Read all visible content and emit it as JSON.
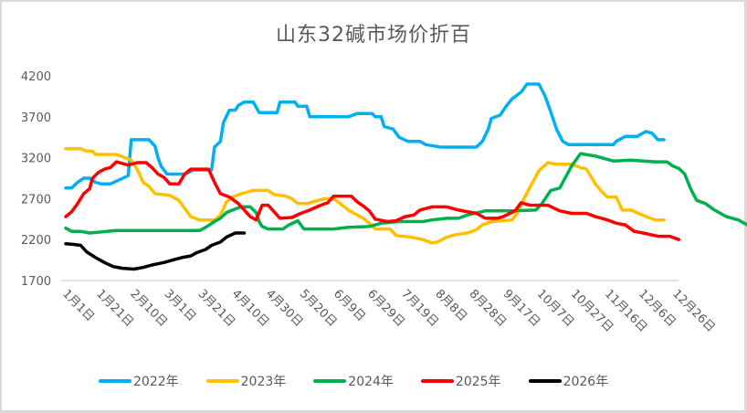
{
  "chart_data": {
    "type": "line",
    "title": "山东32碱市场价折百",
    "xlabel": "",
    "ylabel": "",
    "ylim": [
      1700,
      4200
    ],
    "yticks": [
      1700,
      2200,
      2700,
      3200,
      3700,
      4200
    ],
    "grid": false,
    "legend_position": "bottom",
    "x_tick_labels": [
      "1月1日",
      "1月21日",
      "2月10日",
      "3月1日",
      "3月21日",
      "4月10日",
      "4月30日",
      "5月20日",
      "6月9日",
      "6月29日",
      "7月19日",
      "8月8日",
      "8月28日",
      "9月17日",
      "10月7日",
      "10月27日",
      "11月16日",
      "12月6日",
      "12月26日"
    ],
    "x_unit": "day_of_year",
    "series": [
      {
        "name": "2022年",
        "color": "#00B0F0",
        "points": [
          [
            0,
            2830
          ],
          [
            4,
            2830
          ],
          [
            8,
            2900
          ],
          [
            12,
            2950
          ],
          [
            16,
            2950
          ],
          [
            20,
            2900
          ],
          [
            24,
            2880
          ],
          [
            30,
            2880
          ],
          [
            36,
            2930
          ],
          [
            42,
            2980
          ],
          [
            44,
            3420
          ],
          [
            56,
            3420
          ],
          [
            60,
            3340
          ],
          [
            62,
            3200
          ],
          [
            64,
            3100
          ],
          [
            68,
            3000
          ],
          [
            72,
            3000
          ],
          [
            80,
            3000
          ],
          [
            86,
            3050
          ],
          [
            94,
            3050
          ],
          [
            98,
            3050
          ],
          [
            100,
            3330
          ],
          [
            104,
            3400
          ],
          [
            106,
            3630
          ],
          [
            110,
            3780
          ],
          [
            114,
            3780
          ],
          [
            116,
            3840
          ],
          [
            120,
            3880
          ],
          [
            126,
            3880
          ],
          [
            130,
            3750
          ],
          [
            142,
            3750
          ],
          [
            144,
            3880
          ],
          [
            154,
            3880
          ],
          [
            156,
            3830
          ],
          [
            162,
            3830
          ],
          [
            164,
            3700
          ],
          [
            190,
            3700
          ],
          [
            196,
            3740
          ],
          [
            206,
            3740
          ],
          [
            208,
            3700
          ],
          [
            212,
            3700
          ],
          [
            214,
            3580
          ],
          [
            220,
            3550
          ],
          [
            224,
            3450
          ],
          [
            230,
            3400
          ],
          [
            238,
            3400
          ],
          [
            242,
            3360
          ],
          [
            252,
            3330
          ],
          [
            270,
            3330
          ],
          [
            276,
            3330
          ],
          [
            280,
            3400
          ],
          [
            284,
            3550
          ],
          [
            286,
            3680
          ],
          [
            292,
            3720
          ],
          [
            296,
            3830
          ],
          [
            300,
            3920
          ],
          [
            306,
            4000
          ],
          [
            310,
            4100
          ],
          [
            318,
            4100
          ],
          [
            322,
            3960
          ],
          [
            326,
            3760
          ],
          [
            330,
            3540
          ],
          [
            334,
            3400
          ],
          [
            338,
            3360
          ],
          [
            348,
            3360
          ],
          [
            360,
            3360
          ],
          [
            368,
            3360
          ],
          [
            370,
            3400
          ],
          [
            376,
            3460
          ],
          [
            384,
            3460
          ],
          [
            390,
            3520
          ],
          [
            394,
            3500
          ],
          [
            398,
            3420
          ],
          [
            402,
            3420
          ]
        ]
      },
      {
        "name": "2023年",
        "color": "#FFC000",
        "points": [
          [
            0,
            3310
          ],
          [
            10,
            3310
          ],
          [
            14,
            3280
          ],
          [
            18,
            3280
          ],
          [
            20,
            3240
          ],
          [
            34,
            3240
          ],
          [
            40,
            3200
          ],
          [
            44,
            3170
          ],
          [
            48,
            3060
          ],
          [
            52,
            2900
          ],
          [
            56,
            2850
          ],
          [
            60,
            2760
          ],
          [
            70,
            2740
          ],
          [
            76,
            2680
          ],
          [
            80,
            2580
          ],
          [
            84,
            2480
          ],
          [
            90,
            2440
          ],
          [
            100,
            2440
          ],
          [
            104,
            2500
          ],
          [
            108,
            2660
          ],
          [
            112,
            2720
          ],
          [
            118,
            2760
          ],
          [
            126,
            2800
          ],
          [
            136,
            2800
          ],
          [
            140,
            2750
          ],
          [
            148,
            2730
          ],
          [
            152,
            2700
          ],
          [
            156,
            2640
          ],
          [
            162,
            2640
          ],
          [
            166,
            2660
          ],
          [
            174,
            2700
          ],
          [
            180,
            2700
          ],
          [
            186,
            2620
          ],
          [
            190,
            2560
          ],
          [
            196,
            2500
          ],
          [
            200,
            2460
          ],
          [
            204,
            2400
          ],
          [
            208,
            2330
          ],
          [
            218,
            2330
          ],
          [
            222,
            2250
          ],
          [
            232,
            2230
          ],
          [
            240,
            2200
          ],
          [
            246,
            2160
          ],
          [
            250,
            2170
          ],
          [
            256,
            2230
          ],
          [
            262,
            2260
          ],
          [
            270,
            2280
          ],
          [
            276,
            2320
          ],
          [
            280,
            2380
          ],
          [
            286,
            2420
          ],
          [
            300,
            2440
          ],
          [
            304,
            2540
          ],
          [
            308,
            2700
          ],
          [
            312,
            2840
          ],
          [
            318,
            3040
          ],
          [
            324,
            3140
          ],
          [
            330,
            3120
          ],
          [
            340,
            3120
          ],
          [
            346,
            3080
          ],
          [
            350,
            3060
          ],
          [
            356,
            2880
          ],
          [
            360,
            2790
          ],
          [
            364,
            2720
          ],
          [
            370,
            2720
          ],
          [
            374,
            2560
          ],
          [
            380,
            2560
          ],
          [
            386,
            2510
          ],
          [
            396,
            2440
          ],
          [
            402,
            2440
          ]
        ]
      },
      {
        "name": "2024年",
        "color": "#00B050",
        "points": [
          [
            0,
            2340
          ],
          [
            4,
            2300
          ],
          [
            10,
            2300
          ],
          [
            16,
            2280
          ],
          [
            22,
            2290
          ],
          [
            34,
            2310
          ],
          [
            70,
            2310
          ],
          [
            90,
            2310
          ],
          [
            94,
            2350
          ],
          [
            100,
            2420
          ],
          [
            104,
            2460
          ],
          [
            108,
            2530
          ],
          [
            112,
            2560
          ],
          [
            118,
            2600
          ],
          [
            124,
            2600
          ],
          [
            128,
            2530
          ],
          [
            130,
            2420
          ],
          [
            132,
            2360
          ],
          [
            136,
            2330
          ],
          [
            146,
            2330
          ],
          [
            150,
            2380
          ],
          [
            156,
            2430
          ],
          [
            160,
            2330
          ],
          [
            180,
            2330
          ],
          [
            190,
            2350
          ],
          [
            204,
            2360
          ],
          [
            212,
            2400
          ],
          [
            224,
            2420
          ],
          [
            240,
            2420
          ],
          [
            246,
            2440
          ],
          [
            256,
            2460
          ],
          [
            264,
            2460
          ],
          [
            270,
            2500
          ],
          [
            282,
            2550
          ],
          [
            300,
            2550
          ],
          [
            316,
            2560
          ],
          [
            320,
            2640
          ],
          [
            326,
            2800
          ],
          [
            332,
            2830
          ],
          [
            340,
            3100
          ],
          [
            346,
            3250
          ],
          [
            356,
            3220
          ],
          [
            368,
            3160
          ],
          [
            380,
            3170
          ],
          [
            388,
            3160
          ],
          [
            396,
            3150
          ],
          [
            404,
            3150
          ],
          [
            408,
            3100
          ],
          [
            412,
            3070
          ],
          [
            416,
            3000
          ],
          [
            420,
            2820
          ],
          [
            424,
            2680
          ],
          [
            430,
            2640
          ],
          [
            436,
            2560
          ],
          [
            444,
            2480
          ],
          [
            452,
            2440
          ],
          [
            458,
            2380
          ]
        ]
      },
      {
        "name": "2025年",
        "color": "#FF0000",
        "points": [
          [
            0,
            2480
          ],
          [
            4,
            2540
          ],
          [
            8,
            2640
          ],
          [
            12,
            2760
          ],
          [
            16,
            2820
          ],
          [
            18,
            2950
          ],
          [
            22,
            3020
          ],
          [
            26,
            3060
          ],
          [
            30,
            3080
          ],
          [
            34,
            3150
          ],
          [
            42,
            3110
          ],
          [
            48,
            3140
          ],
          [
            54,
            3140
          ],
          [
            58,
            3080
          ],
          [
            62,
            3000
          ],
          [
            66,
            2960
          ],
          [
            70,
            2880
          ],
          [
            76,
            2880
          ],
          [
            80,
            3000
          ],
          [
            84,
            3060
          ],
          [
            96,
            3060
          ],
          [
            100,
            2900
          ],
          [
            104,
            2760
          ],
          [
            110,
            2720
          ],
          [
            116,
            2640
          ],
          [
            120,
            2560
          ],
          [
            124,
            2480
          ],
          [
            128,
            2440
          ],
          [
            132,
            2620
          ],
          [
            136,
            2620
          ],
          [
            140,
            2540
          ],
          [
            144,
            2460
          ],
          [
            152,
            2470
          ],
          [
            158,
            2520
          ],
          [
            164,
            2560
          ],
          [
            170,
            2610
          ],
          [
            176,
            2650
          ],
          [
            180,
            2730
          ],
          [
            192,
            2730
          ],
          [
            196,
            2660
          ],
          [
            200,
            2610
          ],
          [
            204,
            2550
          ],
          [
            208,
            2450
          ],
          [
            216,
            2420
          ],
          [
            222,
            2430
          ],
          [
            228,
            2480
          ],
          [
            234,
            2500
          ],
          [
            238,
            2560
          ],
          [
            246,
            2600
          ],
          [
            256,
            2600
          ],
          [
            264,
            2560
          ],
          [
            270,
            2540
          ],
          [
            276,
            2520
          ],
          [
            282,
            2460
          ],
          [
            290,
            2460
          ],
          [
            294,
            2480
          ],
          [
            302,
            2550
          ],
          [
            306,
            2650
          ],
          [
            312,
            2620
          ],
          [
            324,
            2620
          ],
          [
            332,
            2550
          ],
          [
            340,
            2520
          ],
          [
            350,
            2520
          ],
          [
            356,
            2480
          ],
          [
            364,
            2440
          ],
          [
            370,
            2400
          ],
          [
            376,
            2380
          ],
          [
            382,
            2300
          ],
          [
            388,
            2280
          ],
          [
            398,
            2240
          ],
          [
            406,
            2240
          ],
          [
            412,
            2200
          ]
        ]
      },
      {
        "name": "2026年",
        "color": "#000000",
        "points": [
          [
            0,
            2150
          ],
          [
            6,
            2140
          ],
          [
            10,
            2130
          ],
          [
            14,
            2050
          ],
          [
            20,
            1980
          ],
          [
            26,
            1920
          ],
          [
            32,
            1870
          ],
          [
            38,
            1850
          ],
          [
            46,
            1840
          ],
          [
            52,
            1860
          ],
          [
            58,
            1890
          ],
          [
            66,
            1920
          ],
          [
            72,
            1950
          ],
          [
            78,
            1980
          ],
          [
            84,
            2000
          ],
          [
            88,
            2040
          ],
          [
            94,
            2080
          ],
          [
            98,
            2130
          ],
          [
            104,
            2170
          ],
          [
            108,
            2230
          ],
          [
            114,
            2280
          ],
          [
            120,
            2280
          ]
        ]
      }
    ]
  },
  "legend": {
    "items": [
      {
        "label": "2022年",
        "color": "#00B0F0"
      },
      {
        "label": "2023年",
        "color": "#FFC000"
      },
      {
        "label": "2024年",
        "color": "#00B050"
      },
      {
        "label": "2025年",
        "color": "#FF0000"
      },
      {
        "label": "2026年",
        "color": "#000000"
      }
    ]
  }
}
